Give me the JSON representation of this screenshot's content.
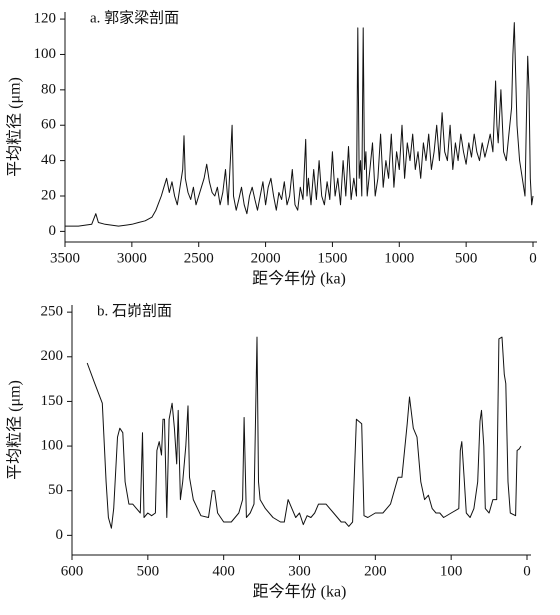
{
  "chart_data": [
    {
      "type": "line",
      "title": "a. 郭家梁剖面",
      "x_label": "距今年份 (ka)",
      "y_label": "平均粒径 (μm)",
      "color": "#111111",
      "xlim": [
        3500,
        0
      ],
      "xticks": [
        3500,
        3000,
        2500,
        2000,
        1500,
        1000,
        500,
        0
      ],
      "ylim": [
        -6,
        124
      ],
      "yticks": [
        0,
        20,
        40,
        60,
        80,
        100,
        120
      ],
      "x": [
        3500,
        3400,
        3300,
        3270,
        3250,
        3200,
        3100,
        3000,
        2950,
        2900,
        2850,
        2820,
        2800,
        2780,
        2760,
        2740,
        2720,
        2700,
        2680,
        2660,
        2640,
        2620,
        2610,
        2600,
        2580,
        2560,
        2540,
        2520,
        2500,
        2480,
        2460,
        2440,
        2420,
        2400,
        2380,
        2360,
        2340,
        2320,
        2300,
        2280,
        2260,
        2250,
        2240,
        2220,
        2200,
        2180,
        2160,
        2140,
        2120,
        2100,
        2080,
        2060,
        2040,
        2020,
        2000,
        1980,
        1960,
        1940,
        1920,
        1900,
        1880,
        1860,
        1840,
        1820,
        1800,
        1780,
        1760,
        1740,
        1720,
        1700,
        1690,
        1680,
        1660,
        1640,
        1620,
        1600,
        1580,
        1560,
        1540,
        1520,
        1500,
        1480,
        1460,
        1440,
        1420,
        1400,
        1380,
        1360,
        1340,
        1320,
        1310,
        1300,
        1290,
        1280,
        1270,
        1260,
        1250,
        1240,
        1220,
        1200,
        1180,
        1160,
        1140,
        1120,
        1100,
        1080,
        1060,
        1040,
        1020,
        1000,
        980,
        960,
        940,
        920,
        900,
        880,
        860,
        840,
        820,
        800,
        780,
        760,
        740,
        720,
        700,
        680,
        660,
        640,
        620,
        600,
        580,
        560,
        540,
        520,
        500,
        480,
        460,
        440,
        420,
        400,
        380,
        360,
        340,
        320,
        300,
        280,
        270,
        260,
        240,
        220,
        200,
        180,
        160,
        150,
        140,
        130,
        120,
        100,
        80,
        60,
        50,
        40,
        30,
        20,
        10,
        0
      ],
      "values": [
        3,
        3,
        4,
        10,
        5,
        4,
        3,
        4,
        5,
        6,
        8,
        12,
        16,
        20,
        25,
        30,
        22,
        28,
        20,
        15,
        25,
        35,
        54,
        30,
        22,
        18,
        25,
        15,
        20,
        25,
        30,
        38,
        28,
        22,
        20,
        25,
        15,
        22,
        35,
        15,
        45,
        60,
        20,
        12,
        18,
        25,
        15,
        10,
        20,
        25,
        18,
        12,
        20,
        28,
        15,
        25,
        30,
        20,
        12,
        22,
        18,
        28,
        15,
        20,
        35,
        15,
        12,
        25,
        18,
        52,
        20,
        30,
        15,
        35,
        18,
        40,
        20,
        15,
        28,
        18,
        45,
        20,
        30,
        15,
        40,
        20,
        48,
        18,
        30,
        20,
        115,
        30,
        40,
        20,
        115,
        35,
        45,
        20,
        35,
        50,
        20,
        30,
        55,
        25,
        40,
        30,
        55,
        25,
        45,
        35,
        60,
        30,
        50,
        40,
        55,
        35,
        45,
        30,
        50,
        40,
        55,
        35,
        45,
        60,
        40,
        67,
        45,
        40,
        60,
        35,
        50,
        40,
        55,
        45,
        38,
        50,
        42,
        55,
        45,
        40,
        50,
        42,
        48,
        55,
        45,
        85,
        60,
        50,
        80,
        45,
        40,
        55,
        70,
        100,
        118,
        90,
        60,
        40,
        30,
        20,
        60,
        99,
        80,
        30,
        15,
        20
      ]
    },
    {
      "type": "line",
      "title": "b. 石峁剖面",
      "x_label": "距今年份 (ka)",
      "y_label": "平均粒径 (μm)",
      "color": "#111111",
      "xlim": [
        600,
        0
      ],
      "xticks": [
        600,
        500,
        400,
        300,
        200,
        100,
        0
      ],
      "ylim": [
        -22,
        258
      ],
      "yticks": [
        0,
        50,
        100,
        150,
        200,
        250
      ],
      "x": [
        580,
        570,
        560,
        555,
        552,
        548,
        545,
        540,
        537,
        533,
        530,
        525,
        520,
        515,
        510,
        507,
        505,
        500,
        495,
        490,
        488,
        485,
        482,
        480,
        478,
        475,
        472,
        468,
        465,
        462,
        460,
        457,
        454,
        450,
        447,
        445,
        440,
        430,
        420,
        415,
        412,
        408,
        400,
        390,
        380,
        375,
        373,
        370,
        365,
        360,
        356,
        354,
        352,
        345,
        335,
        325,
        320,
        315,
        310,
        305,
        300,
        295,
        290,
        285,
        280,
        275,
        265,
        255,
        245,
        240,
        235,
        230,
        225,
        218,
        215,
        210,
        200,
        190,
        180,
        170,
        165,
        158,
        155,
        150,
        145,
        140,
        135,
        130,
        125,
        120,
        115,
        110,
        100,
        90,
        88,
        86,
        83,
        80,
        75,
        70,
        65,
        62,
        60,
        57,
        55,
        50,
        45,
        40,
        37,
        33,
        30,
        28,
        25,
        22,
        15,
        13,
        10,
        8
      ],
      "values": [
        193,
        170,
        148,
        60,
        20,
        8,
        30,
        110,
        120,
        115,
        60,
        35,
        35,
        30,
        25,
        115,
        20,
        25,
        22,
        25,
        95,
        105,
        90,
        130,
        130,
        20,
        130,
        148,
        120,
        80,
        140,
        40,
        60,
        100,
        145,
        65,
        40,
        22,
        20,
        50,
        50,
        25,
        15,
        15,
        25,
        40,
        132,
        20,
        25,
        35,
        222,
        60,
        40,
        30,
        20,
        15,
        15,
        40,
        30,
        20,
        25,
        12,
        22,
        20,
        25,
        35,
        35,
        25,
        15,
        15,
        10,
        15,
        130,
        125,
        22,
        20,
        25,
        25,
        35,
        65,
        65,
        125,
        155,
        120,
        110,
        60,
        40,
        45,
        30,
        25,
        25,
        20,
        25,
        30,
        95,
        105,
        65,
        25,
        20,
        30,
        60,
        128,
        140,
        100,
        30,
        25,
        40,
        40,
        220,
        222,
        180,
        170,
        60,
        25,
        22,
        95,
        97,
        100
      ]
    }
  ]
}
